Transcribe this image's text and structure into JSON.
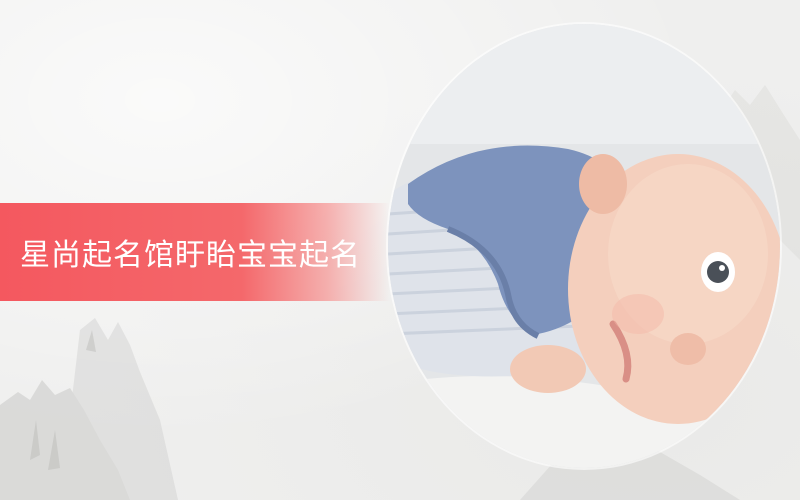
{
  "banner": {
    "title": "星尚起名馆盱眙宝宝起名"
  },
  "photo": {
    "subject": "baby-photo"
  },
  "colors": {
    "banner": "#f4585f",
    "background": "#efefee",
    "text": "#ffffff"
  }
}
